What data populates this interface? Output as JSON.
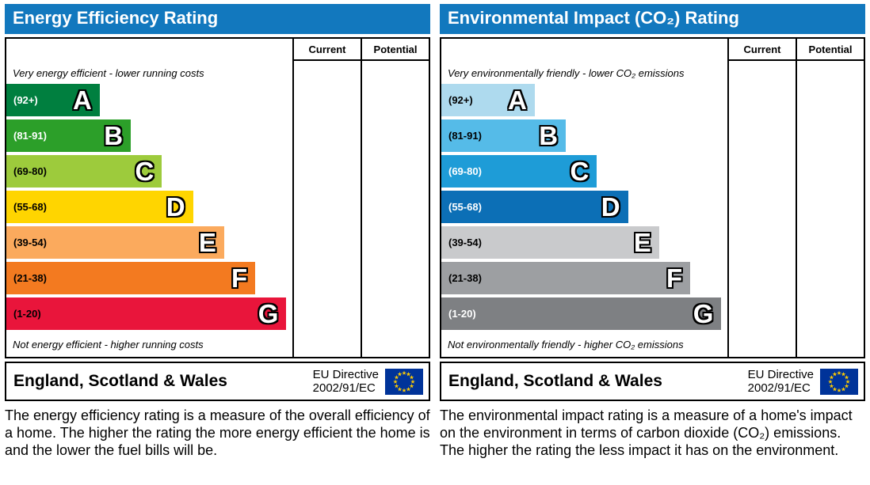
{
  "accent_header_color": "#1278be",
  "eu_flag_colors": {
    "field": "#003399",
    "stars": "#ffcc00"
  },
  "panels": [
    {
      "title": "Energy Efficiency Rating",
      "columns": {
        "current": "Current",
        "potential": "Potential"
      },
      "top_note": "Very energy efficient - lower running costs",
      "bottom_note": "Not energy efficient - higher running costs",
      "footer": {
        "region": "England, Scotland & Wales",
        "directive_line1": "EU Directive",
        "directive_line2": "2002/91/EC"
      },
      "description": "The energy efficiency rating is a measure of the overall efficiency of a home. The higher the rating the more energy efficient the home is and the lower the fuel bills will be.",
      "bands": [
        {
          "letter": "A",
          "range": "(92+)",
          "color": "#007f3f",
          "range_text_color": "#ffffff",
          "width_pct": 33
        },
        {
          "letter": "B",
          "range": "(81-91)",
          "color": "#2c9f29",
          "range_text_color": "#ffffff",
          "width_pct": 44
        },
        {
          "letter": "C",
          "range": "(69-80)",
          "color": "#9dcb3c",
          "range_text_color": "#000000",
          "width_pct": 55
        },
        {
          "letter": "D",
          "range": "(55-68)",
          "color": "#ffd500",
          "range_text_color": "#000000",
          "width_pct": 66
        },
        {
          "letter": "E",
          "range": "(39-54)",
          "color": "#fbaa5d",
          "range_text_color": "#000000",
          "width_pct": 77
        },
        {
          "letter": "F",
          "range": "(21-38)",
          "color": "#f37a20",
          "range_text_color": "#000000",
          "width_pct": 88
        },
        {
          "letter": "G",
          "range": "(1-20)",
          "color": "#e9153b",
          "range_text_color": "#000000",
          "width_pct": 99
        }
      ]
    },
    {
      "title": "Environmental Impact (CO₂) Rating",
      "columns": {
        "current": "Current",
        "potential": "Potential"
      },
      "top_note": "Very environmentally friendly - lower CO₂ emissions",
      "bottom_note": "Not environmentally friendly - higher CO₂ emissions",
      "footer": {
        "region": "England, Scotland & Wales",
        "directive_line1": "EU Directive",
        "directive_line2": "2002/91/EC"
      },
      "description": "The environmental impact rating is a measure of a home's impact on the environment in terms of carbon dioxide (CO₂) emissions. The higher the rating the less impact it has on the environment.",
      "bands": [
        {
          "letter": "A",
          "range": "(92+)",
          "color": "#aedaee",
          "range_text_color": "#000000",
          "width_pct": 33
        },
        {
          "letter": "B",
          "range": "(81-91)",
          "color": "#55bbe8",
          "range_text_color": "#000000",
          "width_pct": 44
        },
        {
          "letter": "C",
          "range": "(69-80)",
          "color": "#1e9cd7",
          "range_text_color": "#ffffff",
          "width_pct": 55
        },
        {
          "letter": "D",
          "range": "(55-68)",
          "color": "#0c6fb6",
          "range_text_color": "#ffffff",
          "width_pct": 66
        },
        {
          "letter": "E",
          "range": "(39-54)",
          "color": "#c9cacc",
          "range_text_color": "#000000",
          "width_pct": 77
        },
        {
          "letter": "F",
          "range": "(21-38)",
          "color": "#9d9fa2",
          "range_text_color": "#000000",
          "width_pct": 88
        },
        {
          "letter": "G",
          "range": "(1-20)",
          "color": "#7e8083",
          "range_text_color": "#ffffff",
          "width_pct": 99
        }
      ]
    }
  ],
  "chart_data": [
    {
      "type": "bar",
      "title": "Energy Efficiency Rating",
      "categories": [
        "A",
        "B",
        "C",
        "D",
        "E",
        "F",
        "G"
      ],
      "band_ranges": [
        "92+",
        "81-91",
        "69-80",
        "55-68",
        "39-54",
        "21-38",
        "1-20"
      ],
      "values": [
        33,
        44,
        55,
        66,
        77,
        88,
        99
      ],
      "value_meaning": "relative bar length percent of chart width",
      "colors": [
        "#007f3f",
        "#2c9f29",
        "#9dcb3c",
        "#ffd500",
        "#fbaa5d",
        "#f37a20",
        "#e9153b"
      ],
      "columns": [
        "Current",
        "Potential"
      ],
      "current_rating": null,
      "potential_rating": null,
      "top_annotation": "Very energy efficient - lower running costs",
      "bottom_annotation": "Not energy efficient - higher running costs"
    },
    {
      "type": "bar",
      "title": "Environmental Impact (CO₂) Rating",
      "categories": [
        "A",
        "B",
        "C",
        "D",
        "E",
        "F",
        "G"
      ],
      "band_ranges": [
        "92+",
        "81-91",
        "69-80",
        "55-68",
        "39-54",
        "21-38",
        "1-20"
      ],
      "values": [
        33,
        44,
        55,
        66,
        77,
        88,
        99
      ],
      "value_meaning": "relative bar length percent of chart width",
      "colors": [
        "#aedaee",
        "#55bbe8",
        "#1e9cd7",
        "#0c6fb6",
        "#c9cacc",
        "#9d9fa2",
        "#7e8083"
      ],
      "columns": [
        "Current",
        "Potential"
      ],
      "current_rating": null,
      "potential_rating": null,
      "top_annotation": "Very environmentally friendly - lower CO₂ emissions",
      "bottom_annotation": "Not environmentally friendly - higher CO₂ emissions"
    }
  ]
}
